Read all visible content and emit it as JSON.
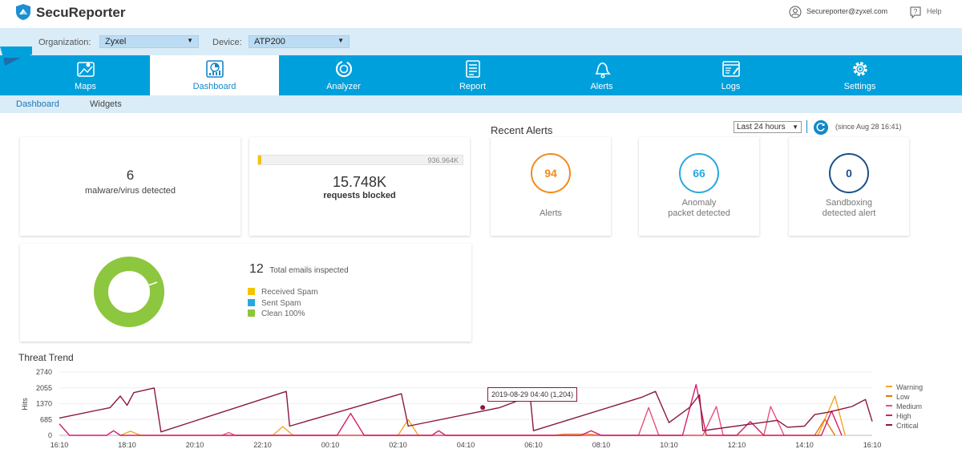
{
  "app": {
    "brand": "SecuReporter",
    "account": "Secureporter@zyxel.com",
    "help": "Help"
  },
  "orgbar": {
    "org_label": "Organization:",
    "org_value": "Zyxel",
    "device_label": "Device:",
    "device_value": "ATP200"
  },
  "nav": {
    "tabs": [
      {
        "label": "Maps",
        "icon": "map-icon"
      },
      {
        "label": "Dashboard",
        "icon": "dashboard-icon",
        "active": true
      },
      {
        "label": "Analyzer",
        "icon": "analyzer-icon"
      },
      {
        "label": "Report",
        "icon": "report-icon"
      },
      {
        "label": "Alerts",
        "icon": "bell-icon"
      },
      {
        "label": "Logs",
        "icon": "logs-icon"
      },
      {
        "label": "Settings",
        "icon": "gear-icon"
      }
    ]
  },
  "subnav": {
    "tabs": [
      {
        "label": "Dashboard",
        "active": true
      },
      {
        "label": "Widgets"
      }
    ]
  },
  "malware": {
    "value": "6",
    "label": "malware/virus detected"
  },
  "requests": {
    "value": "15.748K",
    "label": "requests blocked",
    "total": "936.964K",
    "fill_fraction": 0.017
  },
  "emails": {
    "count": "12",
    "label": "Total emails inspected",
    "legend": [
      {
        "label": "Received Spam",
        "color": "#f5c400"
      },
      {
        "label": "Sent Spam",
        "color": "#29a8e0"
      },
      {
        "label": "Clean 100%",
        "color": "#8dc63f"
      }
    ]
  },
  "recent_alerts": {
    "title": "Recent Alerts",
    "range": "Last 24 hours",
    "since": "(since Aug 28 16:41)",
    "cards": [
      {
        "value": "94",
        "label_1": "Alerts",
        "label_2": "",
        "color": "#f28a1c"
      },
      {
        "value": "66",
        "label_1": "Anomaly",
        "label_2": "packet detected",
        "color": "#29a8e0"
      },
      {
        "value": "0",
        "label_1": "Sandboxing",
        "label_2": "detected alert",
        "color": "#1b4f8a"
      }
    ]
  },
  "threat_trend": {
    "title": "Threat Trend",
    "ylabel": "Hits",
    "tooltip": "2019-08-29 04:40 (1,204)"
  },
  "chart_data": {
    "type": "line",
    "title": "Threat Trend",
    "ylabel": "Hits",
    "ylim": [
      0,
      2740
    ],
    "yticks": [
      0,
      685,
      1370,
      2055,
      2740
    ],
    "xticks": [
      "16:10",
      "18:10",
      "20:10",
      "22:10",
      "00:10",
      "02:10",
      "04:10",
      "06:10",
      "08:10",
      "10:10",
      "12:10",
      "14:10",
      "16:10"
    ],
    "xlim_hours": [
      0,
      24
    ],
    "series": [
      {
        "name": "Warning",
        "color": "#f5a623",
        "points": [
          [
            1.8,
            0
          ],
          [
            2.1,
            180
          ],
          [
            2.4,
            0
          ],
          [
            6.3,
            0
          ],
          [
            6.6,
            380
          ],
          [
            6.9,
            0
          ],
          [
            10.0,
            0
          ],
          [
            10.3,
            680
          ],
          [
            10.6,
            0
          ],
          [
            14.6,
            0
          ],
          [
            14.9,
            60
          ],
          [
            15.6,
            60
          ],
          [
            16.0,
            0
          ],
          [
            22.4,
            0
          ],
          [
            22.9,
            1700
          ],
          [
            23.2,
            0
          ]
        ]
      },
      {
        "name": "Low",
        "color": "#e8750a",
        "points": [
          [
            22.3,
            0
          ],
          [
            22.6,
            700
          ],
          [
            22.9,
            0
          ]
        ]
      },
      {
        "name": "Medium",
        "color": "#e8507a",
        "points": [
          [
            4.8,
            0
          ],
          [
            5.0,
            120
          ],
          [
            5.2,
            0
          ],
          [
            17.1,
            0
          ],
          [
            17.4,
            1200
          ],
          [
            17.7,
            0
          ],
          [
            19.0,
            0
          ],
          [
            19.4,
            1250
          ],
          [
            19.6,
            0
          ],
          [
            20.8,
            0
          ],
          [
            21.0,
            1250
          ],
          [
            21.4,
            0
          ]
        ]
      },
      {
        "name": "High",
        "color": "#d61c6c",
        "points": [
          [
            0,
            500
          ],
          [
            0.3,
            0
          ],
          [
            1.4,
            0
          ],
          [
            1.6,
            200
          ],
          [
            1.8,
            0
          ],
          [
            8.2,
            0
          ],
          [
            8.6,
            950
          ],
          [
            9.0,
            0
          ],
          [
            11.0,
            0
          ],
          [
            11.2,
            200
          ],
          [
            11.4,
            0
          ],
          [
            15.4,
            0
          ],
          [
            15.7,
            200
          ],
          [
            16.0,
            0
          ],
          [
            18.4,
            0
          ],
          [
            18.8,
            2200
          ],
          [
            19.1,
            0
          ],
          [
            20.0,
            0
          ],
          [
            20.4,
            600
          ],
          [
            20.8,
            0
          ],
          [
            22.5,
            0
          ],
          [
            22.8,
            1050
          ],
          [
            23.1,
            0
          ]
        ]
      },
      {
        "name": "Critical",
        "color": "#8a1842",
        "points": [
          [
            0,
            750
          ],
          [
            1.5,
            1200
          ],
          [
            1.8,
            1700
          ],
          [
            2.0,
            1300
          ],
          [
            2.2,
            1850
          ],
          [
            2.8,
            2050
          ],
          [
            3.0,
            150
          ],
          [
            6.7,
            1900
          ],
          [
            6.8,
            400
          ],
          [
            10.1,
            1800
          ],
          [
            10.3,
            400
          ],
          [
            13.0,
            1200
          ],
          [
            13.9,
            1700
          ],
          [
            14.0,
            200
          ],
          [
            17.2,
            1650
          ],
          [
            17.6,
            1900
          ],
          [
            18.0,
            550
          ],
          [
            18.6,
            1200
          ],
          [
            18.9,
            1750
          ],
          [
            19.0,
            200
          ],
          [
            21.2,
            650
          ],
          [
            21.5,
            350
          ],
          [
            22.0,
            400
          ],
          [
            22.3,
            900
          ],
          [
            22.7,
            1000
          ],
          [
            23.4,
            1250
          ],
          [
            23.8,
            1550
          ],
          [
            24.0,
            600
          ]
        ]
      }
    ],
    "tooltip_point": {
      "x_label": "2019-08-29 04:40",
      "value": 1204
    },
    "legend_position": "right",
    "grid": true
  }
}
